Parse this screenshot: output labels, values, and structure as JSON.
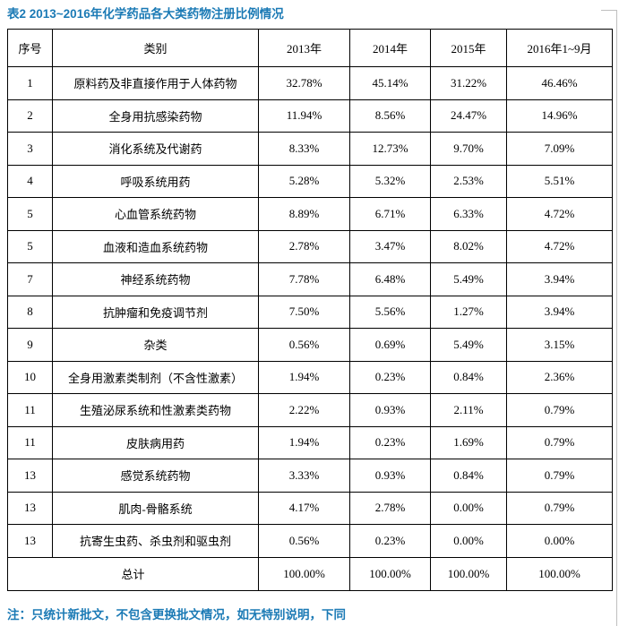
{
  "title": "表2 2013~2016年化学药品各大类药物注册比例情况",
  "note": "注：只统计新批文，不包含更换批文情况，如无特别说明，下同",
  "colors": {
    "heading_text": "#1b7ab5",
    "table_border": "#000000",
    "body_text": "#000000",
    "guide_line": "#bfbfbf"
  },
  "table": {
    "headers": [
      "序号",
      "类别",
      "2013年",
      "2014年",
      "2015年",
      "2016年1~9月"
    ],
    "rows": [
      [
        "1",
        "原料药及非直接作用于人体药物",
        "32.78%",
        "45.14%",
        "31.22%",
        "46.46%"
      ],
      [
        "2",
        "全身用抗感染药物",
        "11.94%",
        "8.56%",
        "24.47%",
        "14.96%"
      ],
      [
        "3",
        "消化系统及代谢药",
        "8.33%",
        "12.73%",
        "9.70%",
        "7.09%"
      ],
      [
        "4",
        "呼吸系统用药",
        "5.28%",
        "5.32%",
        "2.53%",
        "5.51%"
      ],
      [
        "5",
        "心血管系统药物",
        "8.89%",
        "6.71%",
        "6.33%",
        "4.72%"
      ],
      [
        "5",
        "血液和造血系统药物",
        "2.78%",
        "3.47%",
        "8.02%",
        "4.72%"
      ],
      [
        "7",
        "神经系统药物",
        "7.78%",
        "6.48%",
        "5.49%",
        "3.94%"
      ],
      [
        "8",
        "抗肿瘤和免疫调节剂",
        "7.50%",
        "5.56%",
        "1.27%",
        "3.94%"
      ],
      [
        "9",
        "杂类",
        "0.56%",
        "0.69%",
        "5.49%",
        "3.15%"
      ],
      [
        "10",
        "全身用激素类制剂（不含性激素）",
        "1.94%",
        "0.23%",
        "0.84%",
        "2.36%"
      ],
      [
        "11",
        "生殖泌尿系统和性激素类药物",
        "2.22%",
        "0.93%",
        "2.11%",
        "0.79%"
      ],
      [
        "11",
        "皮肤病用药",
        "1.94%",
        "0.23%",
        "1.69%",
        "0.79%"
      ],
      [
        "13",
        "感觉系统药物",
        "3.33%",
        "0.93%",
        "0.84%",
        "0.79%"
      ],
      [
        "13",
        "肌肉-骨骼系统",
        "4.17%",
        "2.78%",
        "0.00%",
        "0.79%"
      ],
      [
        "13",
        "抗寄生虫药、杀虫剂和驱虫剂",
        "0.56%",
        "0.23%",
        "0.00%",
        "0.00%"
      ]
    ],
    "total_row": {
      "label": "总计",
      "values": [
        "100.00%",
        "100.00%",
        "100.00%",
        "100.00%"
      ]
    }
  }
}
